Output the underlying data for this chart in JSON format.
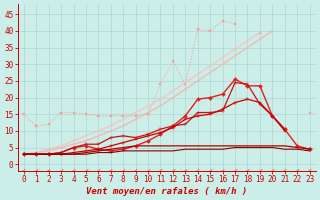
{
  "xlabel": "Vent moyen/en rafales ( km/h )",
  "bg_color": "#cceee8",
  "grid_color": "#aad8d0",
  "x_values": [
    0,
    1,
    2,
    3,
    4,
    5,
    6,
    7,
    8,
    9,
    10,
    11,
    12,
    13,
    14,
    15,
    16,
    17,
    18,
    19,
    20,
    21,
    22,
    23
  ],
  "ylim": [
    -2,
    48
  ],
  "xlim": [
    -0.5,
    23.5
  ],
  "yticks": [
    0,
    5,
    10,
    15,
    20,
    25,
    30,
    35,
    40,
    45
  ],
  "xticks": [
    0,
    1,
    2,
    3,
    4,
    5,
    6,
    7,
    8,
    9,
    10,
    11,
    12,
    13,
    14,
    15,
    16,
    17,
    18,
    19,
    20,
    21,
    22,
    23
  ],
  "series": [
    {
      "comment": "light pink dotted with small square markers - starts at 15, flat ~15 until x=7, then rises sharply to 43 at x=16, then drops",
      "color": "#ff9999",
      "marker": "s",
      "markersize": 1.8,
      "linewidth": 0.8,
      "alpha": 0.9,
      "linestyle": ":",
      "data": [
        15.0,
        11.5,
        12.0,
        15.5,
        15.5,
        15.0,
        14.5,
        14.5,
        14.5,
        14.5,
        15.0,
        24.0,
        31.0,
        24.0,
        40.5,
        40.0,
        43.0,
        42.0,
        null,
        39.5,
        null,
        null,
        null,
        15.5
      ]
    },
    {
      "comment": "light pink straight line 1 - rises from ~3 at x=0 to ~40 at x=23",
      "color": "#ffaaaa",
      "marker": null,
      "markersize": 0,
      "linewidth": 1.0,
      "alpha": 0.8,
      "linestyle": "-",
      "data": [
        3.0,
        3.5,
        4.0,
        5.0,
        6.0,
        7.0,
        8.5,
        10.0,
        11.5,
        13.5,
        15.5,
        17.5,
        20.0,
        22.5,
        25.0,
        27.5,
        30.0,
        32.5,
        35.0,
        37.5,
        40.0,
        null,
        null,
        null
      ]
    },
    {
      "comment": "light pink straight line 2 - rises from ~3 at x=0 to ~39 at x=23",
      "color": "#ffbbbb",
      "marker": null,
      "markersize": 0,
      "linewidth": 1.0,
      "alpha": 0.8,
      "linestyle": "-",
      "data": [
        3.0,
        3.5,
        4.5,
        5.5,
        7.0,
        8.5,
        10.0,
        11.5,
        13.5,
        15.5,
        17.5,
        19.5,
        22.0,
        24.5,
        27.0,
        29.5,
        32.0,
        34.5,
        37.0,
        39.5,
        null,
        null,
        null,
        null
      ]
    },
    {
      "comment": "medium red with diamond markers - rises from 3 to peak 25 at x=17, then drops sharply",
      "color": "#dd2222",
      "marker": "D",
      "markersize": 2,
      "linewidth": 1.0,
      "alpha": 1.0,
      "linestyle": "-",
      "data": [
        3.0,
        3.0,
        3.0,
        3.5,
        5.0,
        5.5,
        4.5,
        4.0,
        4.5,
        5.5,
        7.0,
        9.0,
        11.5,
        14.5,
        19.5,
        20.0,
        21.0,
        25.5,
        23.5,
        23.5,
        14.5,
        10.5,
        5.5,
        4.5
      ]
    },
    {
      "comment": "medium red with cross markers - rises from 3 to peak 24 at x=17-18, then drops",
      "color": "#cc1111",
      "marker": "+",
      "markersize": 3,
      "linewidth": 0.9,
      "alpha": 1.0,
      "linestyle": "-",
      "data": [
        3.0,
        3.0,
        3.0,
        3.5,
        5.0,
        6.0,
        6.0,
        8.0,
        8.5,
        8.0,
        9.0,
        10.5,
        11.5,
        12.0,
        15.5,
        15.5,
        16.0,
        24.5,
        24.0,
        18.0,
        14.5,
        10.5,
        null,
        4.5
      ]
    },
    {
      "comment": "red line with cross markers - rises to 19 at x=18 then drops to 4",
      "color": "#cc0000",
      "marker": "+",
      "markersize": 3,
      "linewidth": 0.9,
      "alpha": 1.0,
      "linestyle": "-",
      "data": [
        3.0,
        3.0,
        3.0,
        3.0,
        3.5,
        4.0,
        4.5,
        5.5,
        6.5,
        7.5,
        8.5,
        9.5,
        11.0,
        13.5,
        14.5,
        15.0,
        16.5,
        18.5,
        19.5,
        18.5,
        14.5,
        10.0,
        null,
        4.5
      ]
    },
    {
      "comment": "dark red nearly flat line, very slight rise from 3 to 5",
      "color": "#aa0000",
      "marker": null,
      "markersize": 0,
      "linewidth": 0.9,
      "alpha": 1.0,
      "linestyle": "-",
      "data": [
        3.0,
        3.0,
        3.0,
        3.0,
        3.0,
        3.5,
        4.0,
        4.5,
        5.0,
        5.5,
        5.5,
        5.5,
        5.5,
        5.5,
        5.5,
        5.5,
        5.5,
        5.5,
        5.5,
        5.5,
        5.5,
        5.5,
        5.0,
        4.5
      ]
    },
    {
      "comment": "darkest red nearly flat - from 3 rising slowly to ~4.5 at x=23",
      "color": "#880000",
      "marker": null,
      "markersize": 0,
      "linewidth": 0.8,
      "alpha": 1.0,
      "linestyle": "-",
      "data": [
        3.0,
        3.0,
        3.0,
        3.0,
        3.0,
        3.0,
        3.5,
        3.5,
        4.0,
        4.0,
        4.0,
        4.0,
        4.0,
        4.5,
        4.5,
        4.5,
        4.5,
        5.0,
        5.0,
        5.0,
        5.0,
        4.5,
        4.5,
        4.0
      ]
    }
  ],
  "label_fontsize": 6.5,
  "tick_fontsize": 5.5
}
